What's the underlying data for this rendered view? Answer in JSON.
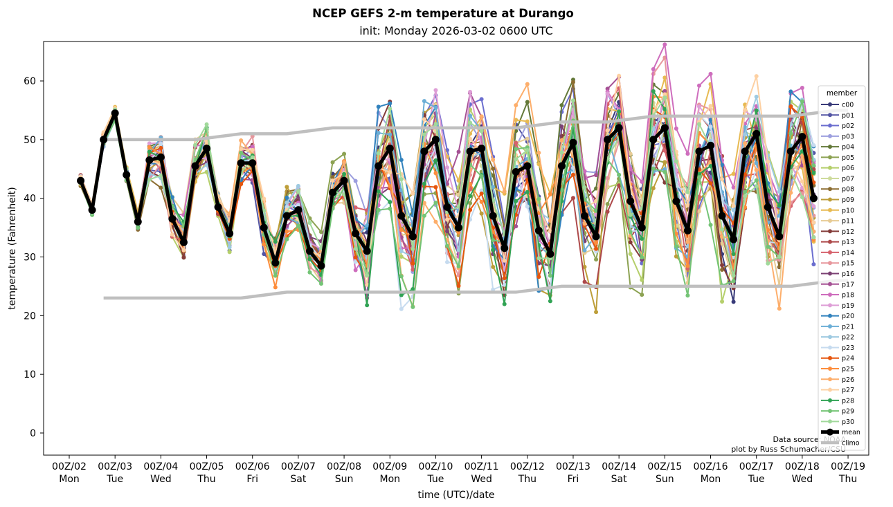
{
  "chart_data": {
    "type": "line",
    "title": "NCEP GEFS 2-m temperature at Durango",
    "subtitle": "init: Monday 2026-03-02 0600 UTC",
    "xlabel": "time (UTC)/date",
    "ylabel": "temperature (Fahrenheit)",
    "ylim": [
      -4,
      67
    ],
    "xlim_days": [
      -0.55,
      17.0
    ],
    "yticks": [
      0,
      10,
      20,
      30,
      40,
      50,
      60
    ],
    "xticks": [
      {
        "label": "00Z/02",
        "day": "Mon"
      },
      {
        "label": "00Z/03",
        "day": "Tue"
      },
      {
        "label": "00Z/04",
        "day": "Wed"
      },
      {
        "label": "00Z/05",
        "day": "Thu"
      },
      {
        "label": "00Z/06",
        "day": "Fri"
      },
      {
        "label": "00Z/07",
        "day": "Sat"
      },
      {
        "label": "00Z/08",
        "day": "Sun"
      },
      {
        "label": "00Z/09",
        "day": "Mon"
      },
      {
        "label": "00Z/10",
        "day": "Tue"
      },
      {
        "label": "00Z/11",
        "day": "Wed"
      },
      {
        "label": "00Z/12",
        "day": "Thu"
      },
      {
        "label": "00Z/13",
        "day": "Fri"
      },
      {
        "label": "00Z/14",
        "day": "Sat"
      },
      {
        "label": "00Z/15",
        "day": "Sun"
      },
      {
        "label": "00Z/16",
        "day": "Mon"
      },
      {
        "label": "00Z/17",
        "day": "Tue"
      },
      {
        "label": "00Z/18",
        "day": "Wed"
      },
      {
        "label": "00Z/19",
        "day": "Thu"
      }
    ],
    "grid": false,
    "legend": {
      "title": "member",
      "placement": "right"
    },
    "time_step_hours": 6,
    "first_time_days_after_00Z02": 0.25,
    "mean": [
      43,
      38,
      50,
      54.5,
      44,
      36,
      46.5,
      47,
      36.5,
      32.5,
      45.5,
      48.5,
      38.5,
      34,
      46,
      46,
      35,
      29,
      37,
      38,
      31,
      28.5,
      41,
      43,
      34,
      31,
      45.5,
      48.5,
      37,
      33.5,
      48,
      50,
      38.5,
      35,
      48,
      48.5,
      37,
      31.5,
      44.5,
      45.5,
      34.5,
      30.5,
      45.5,
      49.5,
      37,
      33.5,
      50,
      52,
      39.5,
      35,
      50,
      52,
      39.5,
      34.5,
      48,
      49,
      37,
      33,
      48,
      51,
      38.5,
      33.5,
      48,
      50.5,
      40
    ],
    "climo": {
      "name": "climo",
      "high": [
        [
          0.75,
          50
        ],
        [
          2.0,
          50
        ],
        [
          2.75,
          50
        ],
        [
          3.75,
          51
        ],
        [
          4.75,
          51
        ],
        [
          5.75,
          52
        ],
        [
          9.75,
          52
        ],
        [
          10.75,
          53
        ],
        [
          11.75,
          53
        ],
        [
          12.75,
          54
        ],
        [
          13.75,
          54
        ],
        [
          15.75,
          54
        ],
        [
          16.75,
          55
        ],
        [
          17.0,
          55
        ]
      ],
      "low": [
        [
          0.75,
          23
        ],
        [
          2.0,
          23
        ],
        [
          2.75,
          23
        ],
        [
          3.75,
          23
        ],
        [
          4.75,
          24
        ],
        [
          5.75,
          24
        ],
        [
          9.75,
          24
        ],
        [
          10.75,
          25
        ],
        [
          11.75,
          25
        ],
        [
          15.75,
          25
        ],
        [
          16.75,
          26
        ],
        [
          17.0,
          26
        ]
      ]
    },
    "members": [
      {
        "name": "c00",
        "color": "#393b79"
      },
      {
        "name": "p01",
        "color": "#5254a3"
      },
      {
        "name": "p02",
        "color": "#6b6ecf"
      },
      {
        "name": "p03",
        "color": "#9c9ede"
      },
      {
        "name": "p04",
        "color": "#637939"
      },
      {
        "name": "p05",
        "color": "#8ca252"
      },
      {
        "name": "p06",
        "color": "#b5cf6b"
      },
      {
        "name": "p07",
        "color": "#cedb9c"
      },
      {
        "name": "p08",
        "color": "#8c6d31"
      },
      {
        "name": "p09",
        "color": "#bd9e39"
      },
      {
        "name": "p10",
        "color": "#e7ba52"
      },
      {
        "name": "p11",
        "color": "#e7cb94"
      },
      {
        "name": "p12",
        "color": "#843c39"
      },
      {
        "name": "p13",
        "color": "#ad494a"
      },
      {
        "name": "p14",
        "color": "#d6616b"
      },
      {
        "name": "p15",
        "color": "#e7969c"
      },
      {
        "name": "p16",
        "color": "#7b4173"
      },
      {
        "name": "p17",
        "color": "#a55194"
      },
      {
        "name": "p18",
        "color": "#ce6dbd"
      },
      {
        "name": "p19",
        "color": "#de9ed6"
      },
      {
        "name": "p20",
        "color": "#3182bd"
      },
      {
        "name": "p21",
        "color": "#6baed6"
      },
      {
        "name": "p22",
        "color": "#9ecae1"
      },
      {
        "name": "p23",
        "color": "#c6dbef"
      },
      {
        "name": "p24",
        "color": "#e6550d"
      },
      {
        "name": "p25",
        "color": "#fd8d3c"
      },
      {
        "name": "p26",
        "color": "#fdae6b"
      },
      {
        "name": "p27",
        "color": "#fdd0a2"
      },
      {
        "name": "p28",
        "color": "#31a354"
      },
      {
        "name": "p29",
        "color": "#74c476"
      },
      {
        "name": "p30",
        "color": "#a1d99b"
      }
    ],
    "member_spread_note": "members spread around mean; widening after 00Z/08",
    "mean_label": "mean",
    "climo_label": "climo"
  },
  "credits": {
    "line1": "Data source: NOAA",
    "line2": "plot by Russ Schumacher/CSU"
  }
}
